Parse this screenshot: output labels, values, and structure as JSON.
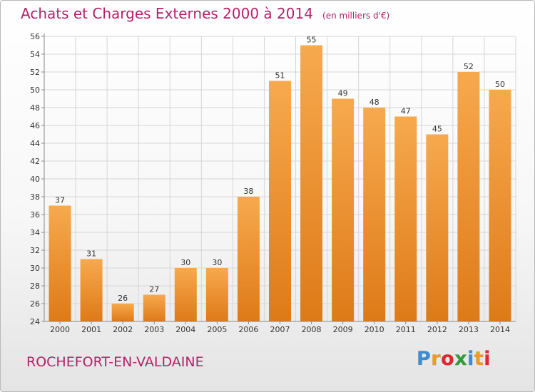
{
  "title": "Achats et Charges Externes 2000 à 2014",
  "unit": "(en milliers d'€)",
  "commune": "ROCHEFORT-EN-VALDAINE",
  "logo": {
    "text": "Proxiti",
    "letter_colors": [
      "#3a8fd4",
      "#f29a1f",
      "#e6262c",
      "#2e9d3a",
      "#3a8fd4",
      "#f29a1f",
      "#e6262c"
    ]
  },
  "colors": {
    "accent": "#b5206a",
    "bar_light": "#f7a94e",
    "bar_dark": "#de7a18",
    "grid": "#d6d6d6"
  },
  "chart_data": {
    "type": "bar",
    "categories": [
      "2000",
      "2001",
      "2002",
      "2003",
      "2004",
      "2005",
      "2006",
      "2007",
      "2008",
      "2009",
      "2010",
      "2011",
      "2012",
      "2013",
      "2014"
    ],
    "values": [
      37,
      31,
      26,
      27,
      30,
      30,
      38,
      51,
      55,
      49,
      48,
      47,
      45,
      52,
      50
    ],
    "ylim": [
      24,
      56
    ],
    "yticks": [
      24,
      26,
      28,
      30,
      32,
      34,
      36,
      38,
      40,
      42,
      44,
      46,
      48,
      50,
      52,
      54,
      56
    ],
    "grid": true,
    "legend": "none"
  }
}
